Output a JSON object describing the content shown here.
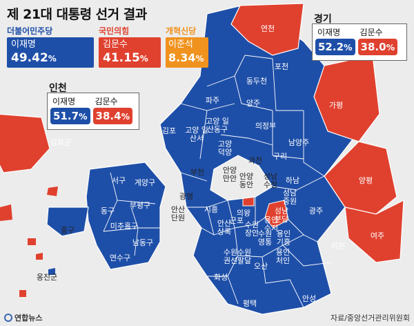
{
  "title": "제 21대 대통령 선거 결과",
  "colors": {
    "blue": "#1e4fa8",
    "red": "#e0412f",
    "orange": "#f0921e",
    "border": "#ffffff",
    "sea": "#ececec"
  },
  "national": {
    "candidates": [
      {
        "party": "더불어민주당",
        "name": "이재명",
        "pct": "49.42",
        "unit": "%",
        "color": "#1e4fa8"
      },
      {
        "party": "국민의힘",
        "name": "김문수",
        "pct": "41.15",
        "unit": "%",
        "color": "#e0412f"
      },
      {
        "party": "개혁신당",
        "name": "이준석",
        "pct": "8.34",
        "unit": "%",
        "color": "#f0921e"
      }
    ]
  },
  "gyeonggi": {
    "region": "경기",
    "candidates": [
      {
        "name": "이재명",
        "pct": "52.2",
        "unit": "%",
        "color": "#1e4fa8"
      },
      {
        "name": "김문수",
        "pct": "38.0",
        "unit": "%",
        "color": "#e0412f"
      }
    ]
  },
  "incheon": {
    "region": "인천",
    "candidates": [
      {
        "name": "이재명",
        "pct": "51.7",
        "unit": "%",
        "color": "#1e4fa8"
      },
      {
        "name": "김문수",
        "pct": "38.4",
        "unit": "%",
        "color": "#e0412f"
      }
    ]
  },
  "districts": [
    {
      "name": "연천",
      "winner": "red"
    },
    {
      "name": "포천",
      "winner": "blue"
    },
    {
      "name": "동두천",
      "winner": "blue"
    },
    {
      "name": "파주",
      "winner": "blue"
    },
    {
      "name": "양주",
      "winner": "blue"
    },
    {
      "name": "가평",
      "winner": "red"
    },
    {
      "name": "의정부",
      "winner": "blue"
    },
    {
      "name": "고양 일산동구",
      "winner": "blue"
    },
    {
      "name": "김포",
      "winner": "blue"
    },
    {
      "name": "고양 일산서",
      "winner": "blue"
    },
    {
      "name": "고양 덕양",
      "winner": "blue"
    },
    {
      "name": "남양주",
      "winner": "blue"
    },
    {
      "name": "구리",
      "winner": "blue"
    },
    {
      "name": "강화군",
      "winner": "red"
    },
    {
      "name": "과천",
      "winner": "blue"
    },
    {
      "name": "양평",
      "winner": "red"
    },
    {
      "name": "하남",
      "winner": "blue"
    },
    {
      "name": "서구",
      "winner": "blue"
    },
    {
      "name": "계양구",
      "winner": "blue"
    },
    {
      "name": "부천",
      "winner": "blue"
    },
    {
      "name": "안양 만안",
      "winner": "blue"
    },
    {
      "name": "안양 동안",
      "winner": "blue"
    },
    {
      "name": "성남 수정",
      "winner": "blue"
    },
    {
      "name": "동구",
      "winner": "blue"
    },
    {
      "name": "부평구",
      "winner": "blue"
    },
    {
      "name": "광명",
      "winner": "blue"
    },
    {
      "name": "성남 중원",
      "winner": "blue"
    },
    {
      "name": "광주",
      "winner": "blue"
    },
    {
      "name": "시흥",
      "winner": "blue"
    },
    {
      "name": "안산 단원",
      "winner": "blue"
    },
    {
      "name": "미추홀구",
      "winner": "blue"
    },
    {
      "name": "중구",
      "winner": "blue"
    },
    {
      "name": "남동구",
      "winner": "blue"
    },
    {
      "name": "안산 상록",
      "winner": "blue"
    },
    {
      "name": "군포",
      "winner": "blue"
    },
    {
      "name": "의왕",
      "winner": "blue"
    },
    {
      "name": "수원 장안",
      "winner": "blue"
    },
    {
      "name": "수원 영통",
      "winner": "blue"
    },
    {
      "name": "용인 수지",
      "winner": "blue"
    },
    {
      "name": "용인 기흥",
      "winner": "blue"
    },
    {
      "name": "성남 분당",
      "winner": "red"
    },
    {
      "name": "여주",
      "winner": "red"
    },
    {
      "name": "연수구",
      "winner": "blue"
    },
    {
      "name": "수원 권선",
      "winner": "blue"
    },
    {
      "name": "수원 팔달",
      "winner": "blue"
    },
    {
      "name": "오산",
      "winner": "blue"
    },
    {
      "name": "용인 처인",
      "winner": "blue"
    },
    {
      "name": "이천",
      "winner": "blue"
    },
    {
      "name": "옹진군",
      "winner": "red"
    },
    {
      "name": "화성",
      "winner": "blue"
    },
    {
      "name": "안성",
      "winner": "blue"
    },
    {
      "name": "평택",
      "winner": "blue"
    }
  ],
  "credit": "연합뉴스",
  "source": "자료/중앙선거관리위원회"
}
